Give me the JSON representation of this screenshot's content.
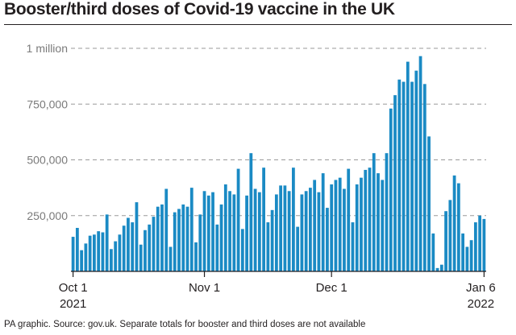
{
  "title": "Booster/third doses of Covid-19 vaccine in the UK",
  "source": "PA graphic. Source: gov.uk. Separate totals for booster and third doses are not available",
  "colors": {
    "bar": "#1a8ac4",
    "grid": "#9a9a9a",
    "axis": "#231f20",
    "tick_label": "#7a7a7a"
  },
  "chart_data": {
    "type": "bar",
    "ylim": [
      0,
      1000000
    ],
    "y_ticks": [
      {
        "value": 250000,
        "label": "250,000"
      },
      {
        "value": 500000,
        "label": "500,000"
      },
      {
        "value": 750000,
        "label": "750,000"
      },
      {
        "value": 1000000,
        "label": "1 million"
      }
    ],
    "x_ticks": [
      {
        "date": "2021-10-01",
        "label": "Oct 1",
        "sublabel": "2021"
      },
      {
        "date": "2021-11-01",
        "label": "Nov 1",
        "sublabel": ""
      },
      {
        "date": "2021-12-01",
        "label": "Dec 1",
        "sublabel": ""
      },
      {
        "date": "2022-01-06",
        "label": "Jan 6",
        "sublabel": "2022"
      }
    ],
    "grid": true,
    "first_date": "2021-10-01",
    "last_date": "2022-01-06",
    "values": [
      155000,
      195000,
      95000,
      125000,
      160000,
      165000,
      180000,
      175000,
      255000,
      100000,
      135000,
      165000,
      205000,
      240000,
      220000,
      310000,
      120000,
      185000,
      210000,
      245000,
      290000,
      300000,
      370000,
      110000,
      265000,
      280000,
      300000,
      290000,
      375000,
      130000,
      255000,
      360000,
      340000,
      355000,
      210000,
      300000,
      390000,
      360000,
      345000,
      460000,
      190000,
      340000,
      530000,
      370000,
      355000,
      465000,
      220000,
      275000,
      345000,
      385000,
      385000,
      360000,
      465000,
      200000,
      345000,
      360000,
      375000,
      410000,
      355000,
      440000,
      285000,
      390000,
      410000,
      420000,
      370000,
      460000,
      220000,
      390000,
      420000,
      455000,
      465000,
      530000,
      440000,
      410000,
      530000,
      730000,
      790000,
      860000,
      850000,
      940000,
      850000,
      900000,
      965000,
      840000,
      605000,
      170000,
      15000,
      30000,
      270000,
      320000,
      430000,
      395000,
      170000,
      110000,
      140000,
      220000,
      250000,
      235000
    ]
  }
}
